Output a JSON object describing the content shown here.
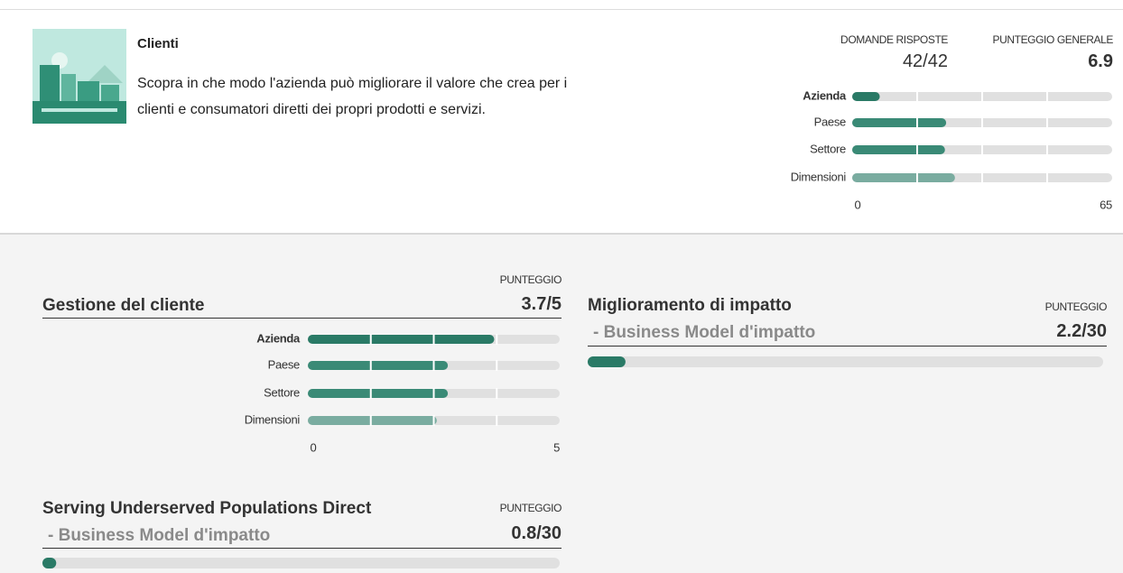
{
  "header": {
    "title": "Clienti",
    "description": "Scopra in che modo l'azienda può migliorare il valore che crea per i clienti e consumatori diretti dei propri prodotti e servizi.",
    "answered_label": "DOMANDE RISPOSTE",
    "answered": "42/42",
    "score_label": "PUNTEGGIO GENERALE",
    "score": "6.9",
    "chart": {
      "type": "bar",
      "categories": [
        "Azienda",
        "Paese",
        "Settore",
        "Dimensioni"
      ],
      "values": [
        6.9,
        23.5,
        23.2,
        25.7
      ],
      "colors": [
        "#2a7a66",
        "#3a8a76",
        "#3a8a76",
        "#7aaca0"
      ],
      "scale": [
        0,
        65
      ]
    }
  },
  "sections": [
    {
      "title": "Gestione del cliente",
      "score_label": "PUNTEGGIO",
      "score": "3.7/5",
      "chart": {
        "type": "bar",
        "categories": [
          "Azienda",
          "Paese",
          "Settore",
          "Dimensioni"
        ],
        "values": [
          3.7,
          2.78,
          2.78,
          2.56
        ],
        "colors": [
          "#2a7a66",
          "#3a8a76",
          "#3a8a76",
          "#7aaca0"
        ],
        "scale": [
          0,
          5
        ]
      }
    },
    {
      "title": "Miglioramento di impatto",
      "subtitle": "- Business Model d'impatto",
      "score_label": "PUNTEGGIO",
      "score": "2.2/30",
      "bar": {
        "value": 2.2,
        "max": 30,
        "color": "#2a7a66"
      }
    },
    {
      "title": "Serving Underserved Populations Direct",
      "subtitle": "- Business Model d'impatto",
      "score_label": "PUNTEGGIO",
      "score": "0.8/30",
      "bar": {
        "value": 0.8,
        "max": 30,
        "color": "#2a7a66"
      }
    }
  ]
}
